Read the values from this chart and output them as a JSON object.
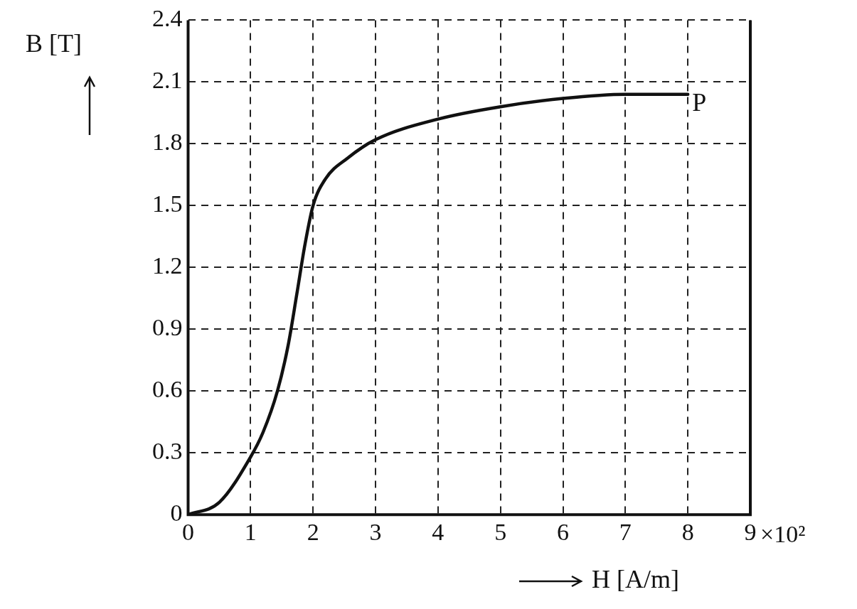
{
  "chart_data": {
    "type": "line",
    "xlabel": "H [A/m]",
    "ylabel": "B [T]",
    "x": [
      0,
      0.5,
      1.0,
      1.2,
      1.43,
      1.6,
      1.74,
      1.87,
      2.0,
      2.2,
      2.55,
      3.0,
      4.0,
      5.0,
      6.0,
      7.0,
      8.0
    ],
    "series": [
      {
        "color": "#111111",
        "values": [
          0,
          0.06,
          0.28,
          0.4,
          0.6,
          0.82,
          1.07,
          1.31,
          1.5,
          1.63,
          1.73,
          1.82,
          1.92,
          1.98,
          2.02,
          2.04,
          2.04
        ]
      }
    ],
    "xlim": [
      0,
      9
    ],
    "xticks": [
      0,
      1,
      2,
      3,
      4,
      5,
      6,
      7,
      8,
      9
    ],
    "ylim": [
      0,
      2.4
    ],
    "yticks": [
      0,
      0.3,
      0.6,
      0.9,
      1.2,
      1.5,
      1.8,
      2.1,
      2.4
    ],
    "annotations": [
      {
        "text": "P",
        "x": 8,
        "y": 2.04
      },
      "×10²"
    ],
    "grid": true,
    "legend": false,
    "marker": "none",
    "line_style": "solid"
  }
}
